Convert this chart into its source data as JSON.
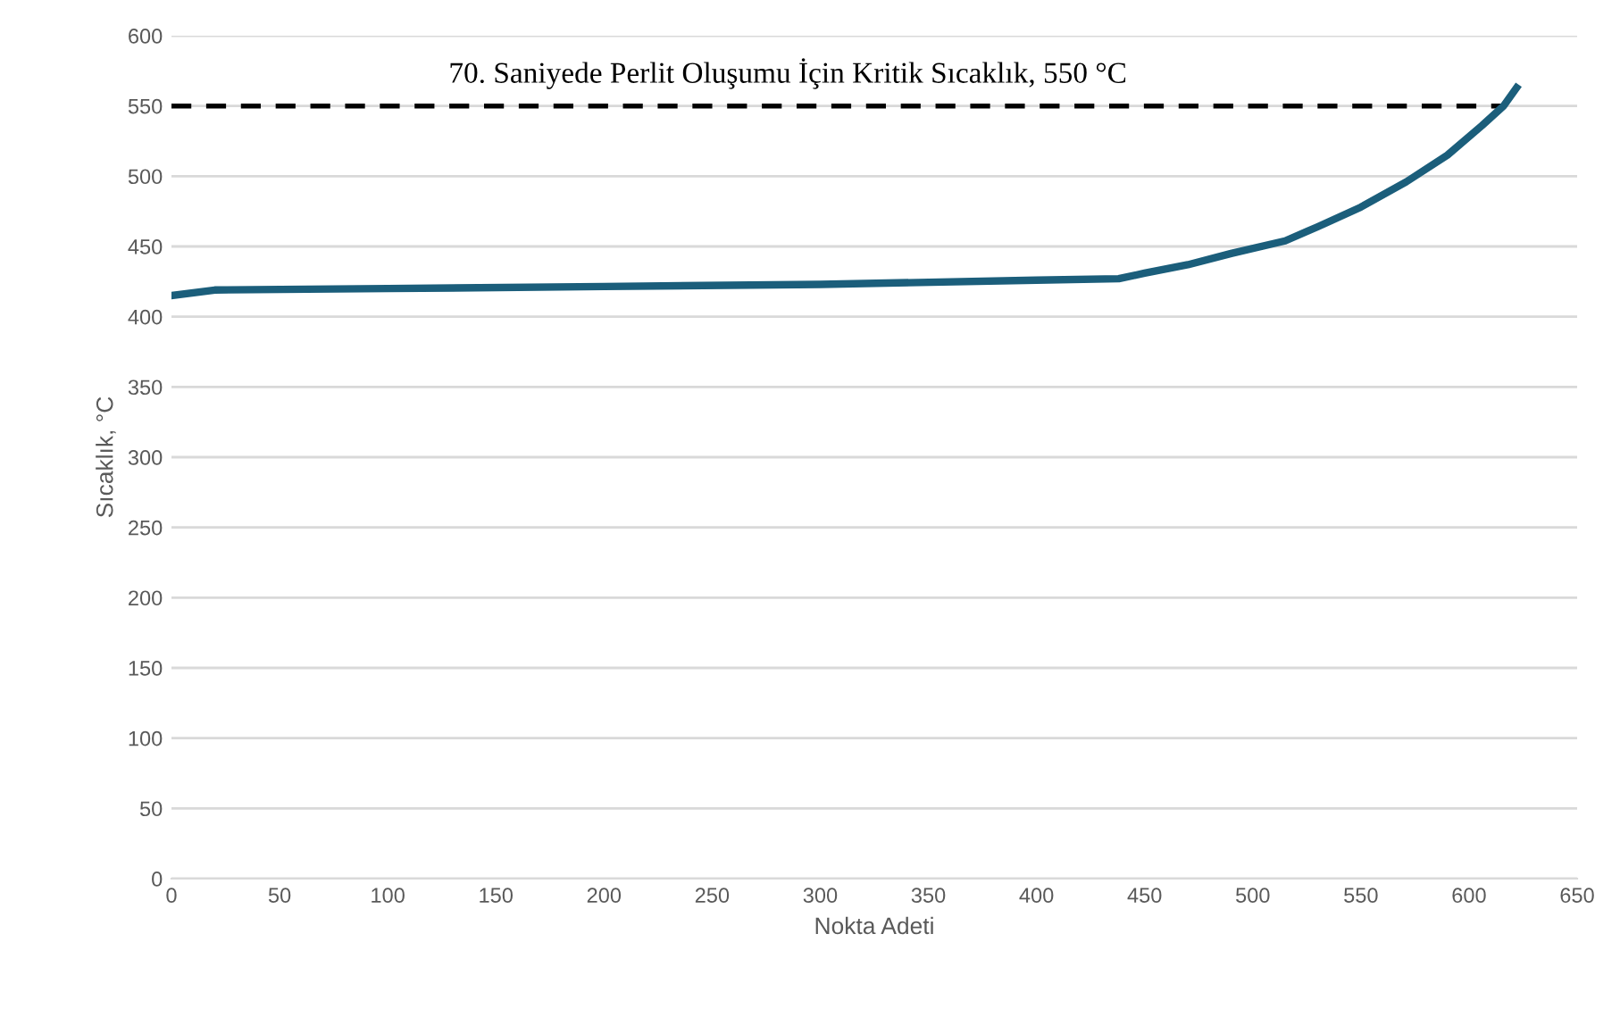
{
  "chart_data": {
    "type": "line",
    "xlabel": "Nokta Adeti",
    "ylabel": "Sıcaklık, °C",
    "x": [
      0,
      20,
      100,
      200,
      300,
      400,
      438,
      450,
      470,
      490,
      515,
      530,
      550,
      571,
      590,
      606,
      616,
      622
    ],
    "series": [
      {
        "color": "#1b5e7b",
        "values": [
          415,
          419,
          420,
          421.5,
          423,
          426,
          427,
          431,
          437,
          445,
          454,
          464,
          478,
          496,
          515,
          536,
          550,
          563
        ]
      }
    ],
    "xlim": [
      0,
      650
    ],
    "xticks": [
      0,
      50,
      100,
      150,
      200,
      250,
      300,
      350,
      400,
      450,
      500,
      550,
      600,
      650
    ],
    "ylim": [
      0,
      600
    ],
    "yticks": [
      0,
      50,
      100,
      150,
      200,
      250,
      300,
      350,
      400,
      450,
      500,
      550,
      600
    ],
    "grid": "y",
    "marker": "none",
    "line_style": "solid",
    "ref_lines": [
      {
        "axis": "y",
        "value": 550,
        "label": "70. Saniyede Perlit Oluşumu İçin Kritik Sıcaklık, 550 °C",
        "color": "#000000",
        "line_style": "dashed"
      }
    ]
  }
}
